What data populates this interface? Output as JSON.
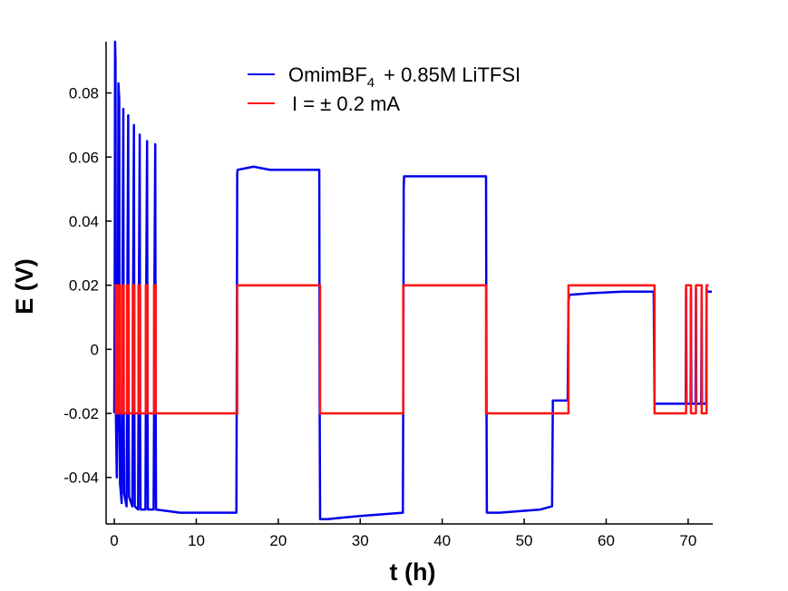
{
  "chart_data": {
    "type": "line",
    "title": "",
    "xlabel": "t (h)",
    "ylabel": "E (V)",
    "xlim": [
      -1,
      73
    ],
    "ylim": [
      -0.0545,
      0.096
    ],
    "xticks": [
      0,
      10,
      20,
      30,
      40,
      50,
      60,
      70
    ],
    "yticks": [
      0.08,
      0.06,
      0.04,
      0.02,
      0,
      -0.02,
      -0.04
    ],
    "ytick_labels": [
      "0.08",
      "0.06",
      "0.04",
      "0.02",
      "0",
      "-0.02",
      "-0.04"
    ],
    "legend_position": "top",
    "series": [
      {
        "name": "OmimBF4 + 0.85M LiTFSI",
        "legend_main": "OmimBF",
        "legend_sub": "4",
        "legend_rest": "+ 0.85M LiTFSI",
        "color": "#0000ee",
        "x": [
          0,
          0.05,
          0.1,
          0.15,
          0.2,
          0.25,
          0.3,
          0.4,
          0.45,
          0.5,
          0.6,
          0.65,
          0.7,
          0.9,
          0.95,
          1.0,
          1.1,
          1.15,
          1.2,
          1.5,
          1.55,
          1.6,
          1.7,
          1.75,
          1.8,
          2.2,
          2.25,
          2.3,
          2.4,
          2.45,
          2.5,
          2.9,
          2.95,
          3.0,
          3.1,
          3.15,
          3.2,
          3.8,
          3.85,
          3.9,
          4.0,
          4.05,
          4.1,
          4.8,
          4.85,
          4.9,
          5.0,
          5.05,
          5.1,
          8,
          10,
          12,
          14.9,
          14.95,
          15.0,
          15.05,
          17,
          19,
          22,
          25.0,
          25.05,
          25.1,
          25.15,
          26,
          30,
          35.2,
          35.25,
          35.3,
          35.35,
          38,
          41,
          45.3,
          45.35,
          45.4,
          45.45,
          47,
          52,
          53.4,
          53.5,
          53.6,
          55.3,
          55.4,
          55.5,
          58,
          62,
          65.8,
          65.9,
          66.0,
          69.7,
          69.75,
          69.8,
          70.3,
          70.35,
          70.4,
          70.9,
          70.95,
          71.0,
          71.6,
          71.65,
          71.7,
          72.2,
          72.25,
          72.3,
          72.9
        ],
        "y": [
          -0.02,
          0.02,
          0.096,
          0.09,
          -0.02,
          -0.03,
          -0.04,
          -0.02,
          0.02,
          0.083,
          0.078,
          -0.02,
          -0.042,
          -0.048,
          -0.02,
          0.02,
          0.075,
          -0.02,
          -0.045,
          -0.049,
          -0.02,
          0.02,
          0.073,
          -0.02,
          -0.046,
          -0.049,
          -0.02,
          0.02,
          0.07,
          -0.02,
          -0.049,
          -0.05,
          -0.02,
          0.02,
          0.067,
          -0.02,
          -0.05,
          -0.05,
          -0.02,
          0.02,
          0.065,
          -0.02,
          -0.05,
          -0.05,
          -0.02,
          0.02,
          0.064,
          -0.02,
          -0.05,
          -0.051,
          -0.051,
          -0.051,
          -0.051,
          0.002,
          0.055,
          0.056,
          0.057,
          0.056,
          0.056,
          0.056,
          -0.015,
          -0.053,
          -0.053,
          -0.053,
          -0.052,
          -0.051,
          -0.015,
          0.05,
          0.054,
          0.054,
          0.054,
          0.054,
          0.054,
          -0.015,
          -0.051,
          -0.051,
          -0.05,
          -0.049,
          -0.016,
          -0.016,
          -0.016,
          0.015,
          0.017,
          0.0175,
          0.018,
          0.018,
          -0.017,
          -0.017,
          -0.017,
          0.019,
          -0.017,
          -0.017,
          0.019,
          -0.017,
          -0.017,
          0.019,
          -0.017,
          -0.017,
          0.019,
          -0.017,
          -0.017,
          0.019,
          0.018,
          0.018
        ]
      },
      {
        "name": "I = ± 0.2 mA",
        "legend_main": "I = ± 0.2 mA",
        "color": "#ff1414",
        "x": [
          0,
          0.2,
          0.2,
          0.45,
          0.45,
          0.65,
          0.65,
          0.95,
          0.95,
          1.15,
          1.15,
          1.55,
          1.55,
          1.75,
          1.75,
          2.25,
          2.25,
          2.45,
          2.45,
          2.95,
          2.95,
          3.15,
          3.15,
          3.85,
          3.85,
          4.05,
          4.05,
          4.85,
          4.85,
          5.05,
          5.05,
          15.0,
          15.0,
          25.1,
          25.1,
          35.25,
          35.25,
          45.35,
          45.35,
          55.4,
          55.4,
          65.9,
          65.9,
          69.75,
          69.75,
          70.35,
          70.35,
          70.95,
          70.95,
          71.65,
          71.65,
          72.25,
          72.25,
          72.5
        ],
        "y": [
          0.02,
          0.02,
          -0.02,
          -0.02,
          0.02,
          0.02,
          -0.02,
          -0.02,
          0.02,
          0.02,
          -0.02,
          -0.02,
          0.02,
          0.02,
          -0.02,
          -0.02,
          0.02,
          0.02,
          -0.02,
          -0.02,
          0.02,
          0.02,
          -0.02,
          -0.02,
          0.02,
          0.02,
          -0.02,
          -0.02,
          0.02,
          0.02,
          -0.02,
          -0.02,
          0.02,
          0.02,
          -0.02,
          -0.02,
          0.02,
          0.02,
          -0.02,
          -0.02,
          0.02,
          0.02,
          -0.02,
          -0.02,
          0.02,
          0.02,
          -0.02,
          -0.02,
          0.02,
          0.02,
          -0.02,
          -0.02,
          0.02,
          0.02
        ]
      }
    ]
  }
}
